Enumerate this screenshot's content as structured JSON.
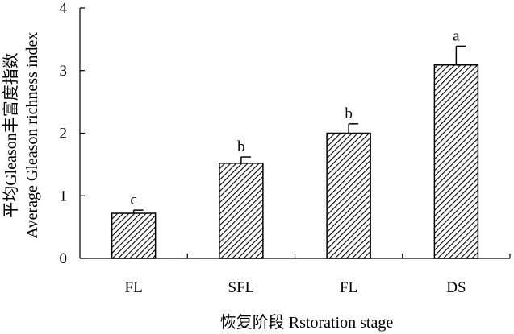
{
  "chart_data": {
    "type": "bar",
    "categories": [
      "FL",
      "SFL",
      "FL",
      "DS"
    ],
    "values": [
      0.72,
      1.52,
      2.0,
      3.09
    ],
    "errors": [
      0.05,
      0.1,
      0.15,
      0.3
    ],
    "significance": [
      "c",
      "b",
      "b",
      "a"
    ],
    "xlabel": "恢复阶段 Rstoration stage",
    "ylabel": [
      "平均Gleason丰富度指数",
      "Average Gleason richness index"
    ],
    "ylim": [
      0,
      4
    ],
    "yticks": [
      0,
      1,
      2,
      3,
      4
    ],
    "ytick_labels": [
      "0",
      "1",
      "2",
      "3",
      "4"
    ],
    "grid": false,
    "legend": "none",
    "bar_fill": "hatched",
    "colors": {
      "bar_stroke": "#000000",
      "hatch": "#000000",
      "axis": "#000000",
      "background": "#ffffff"
    }
  }
}
